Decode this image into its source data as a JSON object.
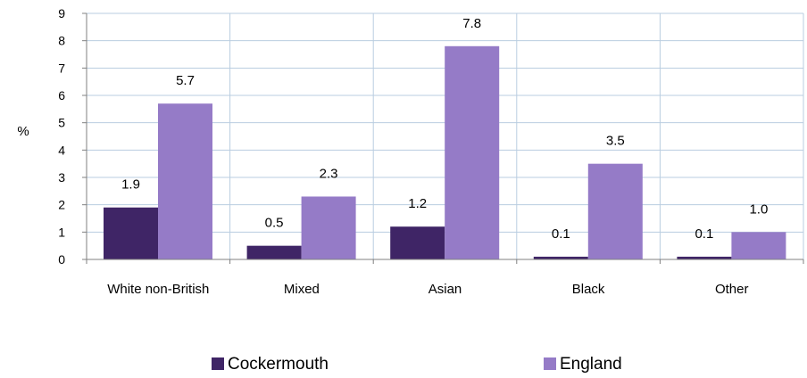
{
  "chart_data": {
    "type": "bar",
    "categories": [
      "White non-British",
      "Mixed",
      "Asian",
      "Black",
      "Other"
    ],
    "series": [
      {
        "name": "Cockermouth",
        "values": [
          1.9,
          0.5,
          1.2,
          0.1,
          0.1
        ],
        "labels": [
          "1.9",
          "0.5",
          "1.2",
          "0.1",
          "0.1"
        ],
        "color": "#3f2566"
      },
      {
        "name": "England",
        "values": [
          5.7,
          2.3,
          7.8,
          3.5,
          1.0
        ],
        "labels": [
          "5.7",
          "2.3",
          "7.8",
          "3.5",
          "1.0"
        ],
        "color": "#957bc7"
      }
    ],
    "ylabel": "%",
    "ylim": [
      0,
      9
    ],
    "yticks": [
      "0",
      "1",
      "2",
      "3",
      "4",
      "5",
      "6",
      "7",
      "8",
      "9"
    ],
    "grid": true,
    "legend_position": "bottom"
  },
  "colors": {
    "gridline": "#b9cde0",
    "axis": "#808080"
  }
}
